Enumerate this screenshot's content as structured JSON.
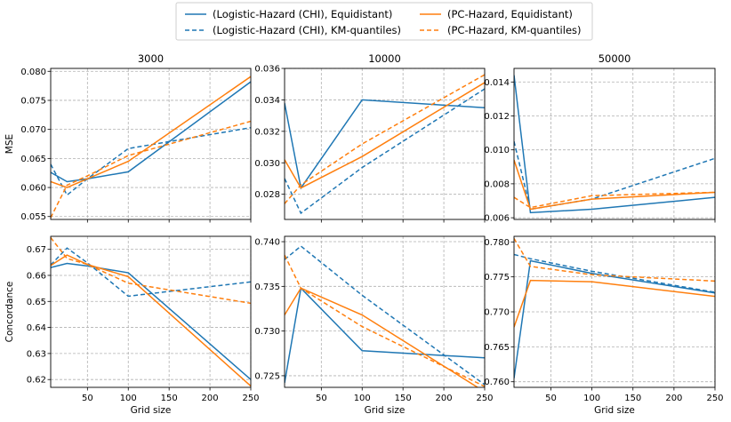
{
  "legend": {
    "entries": [
      {
        "label": "(Logistic-Hazard (CHI), Equidistant)",
        "color": "#1f77b4",
        "dash": "solid"
      },
      {
        "label": "(Logistic-Hazard (CHI), KM-quantiles)",
        "color": "#1f77b4",
        "dash": "dashed"
      },
      {
        "label": "(PC-Hazard, Equidistant)",
        "color": "#ff7f0e",
        "dash": "solid"
      },
      {
        "label": "(PC-Hazard, KM-quantiles)",
        "color": "#ff7f0e",
        "dash": "dashed"
      }
    ]
  },
  "chart_data": [
    {
      "type": "line",
      "title": "3000",
      "xlabel": "",
      "ylabel": "MSE",
      "xlim": [
        5,
        250
      ],
      "ylim": [
        0.0545,
        0.0805
      ],
      "xticks": [
        50,
        100,
        150,
        200,
        250
      ],
      "xtick_labels": [
        "",
        "",
        "",
        "",
        ""
      ],
      "yticks": [
        0.055,
        0.06,
        0.065,
        0.07,
        0.075,
        0.08
      ],
      "ytick_labels": [
        "0.055",
        "0.060",
        "0.065",
        "0.070",
        "0.075",
        "0.080"
      ],
      "grid": true,
      "series": [
        {
          "name": "(Logistic-Hazard (CHI), Equidistant)",
          "x": [
            5,
            25,
            50,
            100,
            250
          ],
          "y": [
            0.0626,
            0.061,
            0.0615,
            0.0627,
            0.0782
          ]
        },
        {
          "name": "(Logistic-Hazard (CHI), KM-quantiles)",
          "x": [
            5,
            25,
            50,
            100,
            250
          ],
          "y": [
            0.064,
            0.0587,
            0.0615,
            0.0667,
            0.0703
          ]
        },
        {
          "name": "(PC-Hazard, Equidistant)",
          "x": [
            5,
            25,
            50,
            100,
            250
          ],
          "y": [
            0.061,
            0.06,
            0.0615,
            0.0645,
            0.0791
          ]
        },
        {
          "name": "(PC-Hazard, KM-quantiles)",
          "x": [
            5,
            25,
            50,
            100,
            250
          ],
          "y": [
            0.0548,
            0.0604,
            0.062,
            0.0655,
            0.0714
          ]
        }
      ]
    },
    {
      "type": "line",
      "title": "10000",
      "xlabel": "",
      "ylabel": "",
      "xlim": [
        5,
        250
      ],
      "ylim": [
        0.0264,
        0.036
      ],
      "xticks": [
        50,
        100,
        150,
        200,
        250
      ],
      "xtick_labels": [
        "",
        "",
        "",
        "",
        ""
      ],
      "yticks": [
        0.028,
        0.03,
        0.032,
        0.034,
        0.036
      ],
      "ytick_labels": [
        "0.028",
        "0.030",
        "0.032",
        "0.034",
        "0.036"
      ],
      "grid": true,
      "series": [
        {
          "name": "(Logistic-Hazard (CHI), Equidistant)",
          "x": [
            5,
            25,
            100,
            250
          ],
          "y": [
            0.0338,
            0.0284,
            0.034,
            0.0335
          ]
        },
        {
          "name": "(Logistic-Hazard (CHI), KM-quantiles)",
          "x": [
            5,
            25,
            100,
            250
          ],
          "y": [
            0.029,
            0.0268,
            0.0297,
            0.0347
          ]
        },
        {
          "name": "(PC-Hazard, Equidistant)",
          "x": [
            5,
            25,
            100,
            250
          ],
          "y": [
            0.0302,
            0.0284,
            0.0304,
            0.0351
          ]
        },
        {
          "name": "(PC-Hazard, KM-quantiles)",
          "x": [
            5,
            25,
            100,
            250
          ],
          "y": [
            0.0274,
            0.0286,
            0.0312,
            0.0356
          ]
        }
      ]
    },
    {
      "type": "line",
      "title": "50000",
      "xlabel": "",
      "ylabel": "",
      "xlim": [
        5,
        250
      ],
      "ylim": [
        0.0059,
        0.0148
      ],
      "xticks": [
        50,
        100,
        150,
        200,
        250
      ],
      "xtick_labels": [
        "",
        "",
        "",
        "",
        ""
      ],
      "yticks": [
        0.006,
        0.008,
        0.01,
        0.012,
        0.014
      ],
      "ytick_labels": [
        "0.006",
        "0.008",
        "0.010",
        "0.012",
        "0.014"
      ],
      "grid": true,
      "series": [
        {
          "name": "(Logistic-Hazard (CHI), Equidistant)",
          "x": [
            5,
            25,
            100,
            250
          ],
          "y": [
            0.0144,
            0.0063,
            0.0065,
            0.0072
          ]
        },
        {
          "name": "(Logistic-Hazard (CHI), KM-quantiles)",
          "x": [
            5,
            25,
            100,
            250
          ],
          "y": [
            0.0105,
            0.0065,
            0.0071,
            0.0095
          ]
        },
        {
          "name": "(PC-Hazard, Equidistant)",
          "x": [
            5,
            25,
            100,
            250
          ],
          "y": [
            0.0094,
            0.0065,
            0.0071,
            0.0075
          ]
        },
        {
          "name": "(PC-Hazard, KM-quantiles)",
          "x": [
            5,
            25,
            100,
            250
          ],
          "y": [
            0.0072,
            0.0066,
            0.0073,
            0.0075
          ]
        }
      ]
    },
    {
      "type": "line",
      "title": "",
      "xlabel": "Grid size",
      "ylabel": "Concordance",
      "xlim": [
        5,
        250
      ],
      "ylim": [
        0.617,
        0.675
      ],
      "xticks": [
        50,
        100,
        150,
        200,
        250
      ],
      "xtick_labels": [
        "50",
        "100",
        "150",
        "200",
        "250"
      ],
      "yticks": [
        0.62,
        0.63,
        0.64,
        0.65,
        0.66,
        0.67
      ],
      "ytick_labels": [
        "0.62",
        "0.63",
        "0.64",
        "0.65",
        "0.66",
        "0.67"
      ],
      "grid": true,
      "series": [
        {
          "name": "(Logistic-Hazard (CHI), Equidistant)",
          "x": [
            5,
            25,
            50,
            100,
            250
          ],
          "y": [
            0.663,
            0.6646,
            0.6636,
            0.661,
            0.62
          ]
        },
        {
          "name": "(Logistic-Hazard (CHI), KM-quantiles)",
          "x": [
            5,
            25,
            50,
            100,
            250
          ],
          "y": [
            0.664,
            0.6705,
            0.6648,
            0.652,
            0.6575
          ]
        },
        {
          "name": "(PC-Hazard, Equidistant)",
          "x": [
            5,
            25,
            50,
            100,
            250
          ],
          "y": [
            0.6638,
            0.6678,
            0.6642,
            0.6595,
            0.6175
          ]
        },
        {
          "name": "(PC-Hazard, KM-quantiles)",
          "x": [
            5,
            25,
            50,
            100,
            250
          ],
          "y": [
            0.6745,
            0.6665,
            0.6642,
            0.657,
            0.6493
          ]
        }
      ]
    },
    {
      "type": "line",
      "title": "",
      "xlabel": "Grid size",
      "ylabel": "",
      "xlim": [
        5,
        250
      ],
      "ylim": [
        0.7237,
        0.7406
      ],
      "xticks": [
        50,
        100,
        150,
        200,
        250
      ],
      "xtick_labels": [
        "50",
        "100",
        "150",
        "200",
        "250"
      ],
      "yticks": [
        0.725,
        0.73,
        0.735,
        0.74
      ],
      "ytick_labels": [
        "0.725",
        "0.730",
        "0.735",
        "0.740"
      ],
      "grid": true,
      "series": [
        {
          "name": "(Logistic-Hazard (CHI), Equidistant)",
          "x": [
            5,
            25,
            100,
            250
          ],
          "y": [
            0.7242,
            0.7348,
            0.7278,
            0.727
          ]
        },
        {
          "name": "(Logistic-Hazard (CHI), KM-quantiles)",
          "x": [
            5,
            25,
            100,
            250
          ],
          "y": [
            0.738,
            0.7395,
            0.734,
            0.724
          ]
        },
        {
          "name": "(PC-Hazard, Equidistant)",
          "x": [
            5,
            25,
            100,
            250
          ],
          "y": [
            0.7318,
            0.7348,
            0.7318,
            0.7232
          ]
        },
        {
          "name": "(PC-Hazard, KM-quantiles)",
          "x": [
            5,
            25,
            100,
            250
          ],
          "y": [
            0.7385,
            0.7348,
            0.7305,
            0.7238
          ]
        }
      ]
    },
    {
      "type": "line",
      "title": "",
      "xlabel": "Grid size",
      "ylabel": "",
      "xlim": [
        5,
        250
      ],
      "ylim": [
        0.7592,
        0.7808
      ],
      "xticks": [
        50,
        100,
        150,
        200,
        250
      ],
      "xtick_labels": [
        "50",
        "100",
        "150",
        "200",
        "250"
      ],
      "yticks": [
        0.76,
        0.765,
        0.77,
        0.775,
        0.78
      ],
      "ytick_labels": [
        "0.760",
        "0.765",
        "0.770",
        "0.775",
        "0.780"
      ],
      "grid": true,
      "series": [
        {
          "name": "(Logistic-Hazard (CHI), Equidistant)",
          "x": [
            5,
            25,
            100,
            250
          ],
          "y": [
            0.7605,
            0.7773,
            0.7755,
            0.7727
          ]
        },
        {
          "name": "(Logistic-Hazard (CHI), KM-quantiles)",
          "x": [
            5,
            25,
            100,
            250
          ],
          "y": [
            0.7782,
            0.7776,
            0.7758,
            0.7728
          ]
        },
        {
          "name": "(PC-Hazard, Equidistant)",
          "x": [
            5,
            25,
            100,
            250
          ],
          "y": [
            0.7678,
            0.7745,
            0.7743,
            0.7722
          ]
        },
        {
          "name": "(PC-Hazard, KM-quantiles)",
          "x": [
            5,
            25,
            100,
            250
          ],
          "y": [
            0.7805,
            0.7765,
            0.7753,
            0.7744
          ]
        }
      ]
    }
  ]
}
